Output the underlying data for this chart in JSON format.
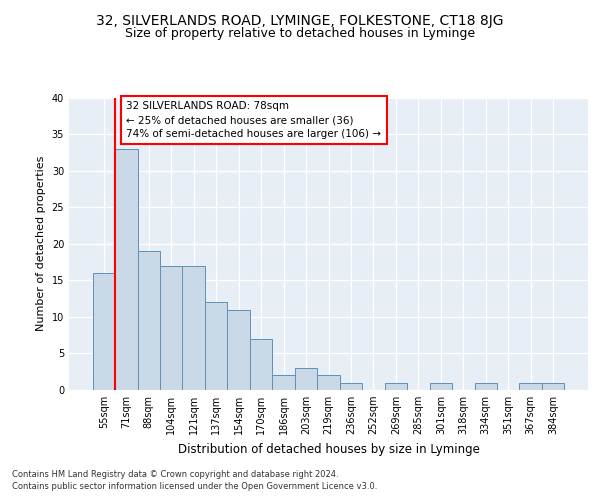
{
  "title": "32, SILVERLANDS ROAD, LYMINGE, FOLKESTONE, CT18 8JG",
  "subtitle": "Size of property relative to detached houses in Lyminge",
  "xlabel": "Distribution of detached houses by size in Lyminge",
  "ylabel": "Number of detached properties",
  "footer_line1": "Contains HM Land Registry data © Crown copyright and database right 2024.",
  "footer_line2": "Contains public sector information licensed under the Open Government Licence v3.0.",
  "categories": [
    "55sqm",
    "71sqm",
    "88sqm",
    "104sqm",
    "121sqm",
    "137sqm",
    "154sqm",
    "170sqm",
    "186sqm",
    "203sqm",
    "219sqm",
    "236sqm",
    "252sqm",
    "269sqm",
    "285sqm",
    "301sqm",
    "318sqm",
    "334sqm",
    "351sqm",
    "367sqm",
    "384sqm"
  ],
  "values": [
    16,
    33,
    19,
    17,
    17,
    12,
    11,
    7,
    2,
    3,
    2,
    1,
    0,
    1,
    0,
    1,
    0,
    1,
    0,
    1,
    1
  ],
  "bar_color": "#c9d9e8",
  "bar_edge_color": "#6090b8",
  "property_line_x": 1.0,
  "annotation_text": "32 SILVERLANDS ROAD: 78sqm\n← 25% of detached houses are smaller (36)\n74% of semi-detached houses are larger (106) →",
  "annotation_box_color": "white",
  "annotation_box_edge_color": "red",
  "property_line_color": "red",
  "ylim": [
    0,
    40
  ],
  "yticks": [
    0,
    5,
    10,
    15,
    20,
    25,
    30,
    35,
    40
  ],
  "plot_bg_color": "#e8eef5",
  "title_fontsize": 10,
  "subtitle_fontsize": 9,
  "annotation_fontsize": 7.5,
  "ylabel_fontsize": 8,
  "xlabel_fontsize": 8.5,
  "tick_fontsize": 7
}
